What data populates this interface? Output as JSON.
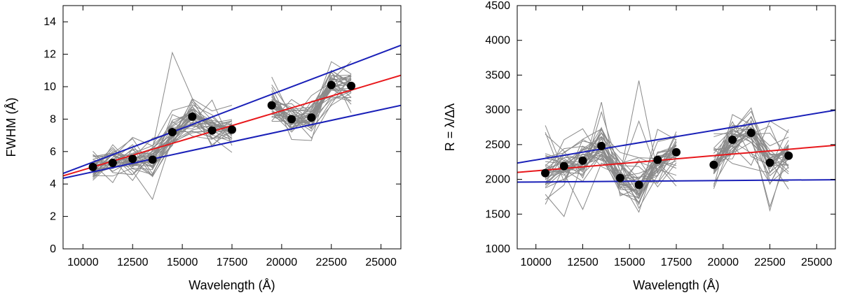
{
  "chart_data": [
    {
      "type": "scatter",
      "xlabel": "Wavelength (Å)",
      "ylabel": "FWHM (Å)",
      "xlim": [
        9000,
        26000
      ],
      "ylim": [
        0,
        15
      ],
      "x_ticks": [
        10000,
        12500,
        15000,
        17500,
        20000,
        22500,
        25000
      ],
      "y_ticks": [
        0,
        2,
        4,
        6,
        8,
        10,
        12,
        14
      ],
      "grid": false,
      "points": {
        "name": "Median",
        "color": "#000000",
        "x": [
          10500,
          11500,
          12500,
          13500,
          14500,
          15500,
          16500,
          17500,
          19500,
          20500,
          21500,
          22500,
          23500
        ],
        "y": [
          5.05,
          5.3,
          5.55,
          5.5,
          7.2,
          8.15,
          7.3,
          7.35,
          8.85,
          8.0,
          8.1,
          10.1,
          10.05
        ]
      },
      "fit_lines": [
        {
          "name": "Fit",
          "color": "#e8181c",
          "x": [
            9000,
            26000
          ],
          "y": [
            4.5,
            10.7
          ]
        },
        {
          "name": "Upper bound",
          "color": "#1a20b8",
          "x": [
            9000,
            26000
          ],
          "y": [
            4.65,
            12.55
          ]
        },
        {
          "name": "Lower bound",
          "color": "#1a20b8",
          "x": [
            9000,
            26000
          ],
          "y": [
            4.35,
            8.85
          ]
        }
      ],
      "individual_curves": {
        "color": "#8a8a8a",
        "count": 36,
        "segments": [
          {
            "x_range": [
              10500,
              17500
            ],
            "anchor_index_start": 0,
            "anchor_index_end": 7
          },
          {
            "x_range": [
              19500,
              23500
            ],
            "anchor_index_start": 8,
            "anchor_index_end": 12
          }
        ]
      }
    },
    {
      "type": "scatter",
      "xlabel": "Wavelength (Å)",
      "ylabel": "R = λ/Δλ",
      "xlim": [
        9000,
        26000
      ],
      "ylim": [
        1000,
        4500
      ],
      "x_ticks": [
        10000,
        12500,
        15000,
        17500,
        20000,
        22500,
        25000
      ],
      "y_ticks": [
        1000,
        1500,
        2000,
        2500,
        3000,
        3500,
        4000,
        4500
      ],
      "grid": false,
      "points": {
        "name": "Median",
        "color": "#000000",
        "x": [
          10500,
          11500,
          12500,
          13500,
          14500,
          15500,
          16500,
          17500,
          19500,
          20500,
          21500,
          22500,
          23500
        ],
        "y": [
          2090,
          2190,
          2270,
          2480,
          2020,
          1920,
          2280,
          2390,
          2210,
          2570,
          2670,
          2240,
          2340
        ]
      },
      "fit_lines": [
        {
          "name": "Fit",
          "color": "#e8181c",
          "x": [
            9000,
            26000
          ],
          "y": [
            2100,
            2490
          ]
        },
        {
          "name": "Upper bound",
          "color": "#1a20b8",
          "x": [
            9000,
            26000
          ],
          "y": [
            2235,
            2995
          ]
        },
        {
          "name": "Lower bound",
          "color": "#1a20b8",
          "x": [
            9000,
            26000
          ],
          "y": [
            1960,
            1995
          ]
        }
      ],
      "individual_curves": {
        "color": "#8a8a8a",
        "count": 36,
        "segments": [
          {
            "x_range": [
              10500,
              17500
            ],
            "anchor_index_start": 0,
            "anchor_index_end": 7
          },
          {
            "x_range": [
              19500,
              23500
            ],
            "anchor_index_start": 8,
            "anchor_index_end": 12
          }
        ]
      }
    }
  ]
}
